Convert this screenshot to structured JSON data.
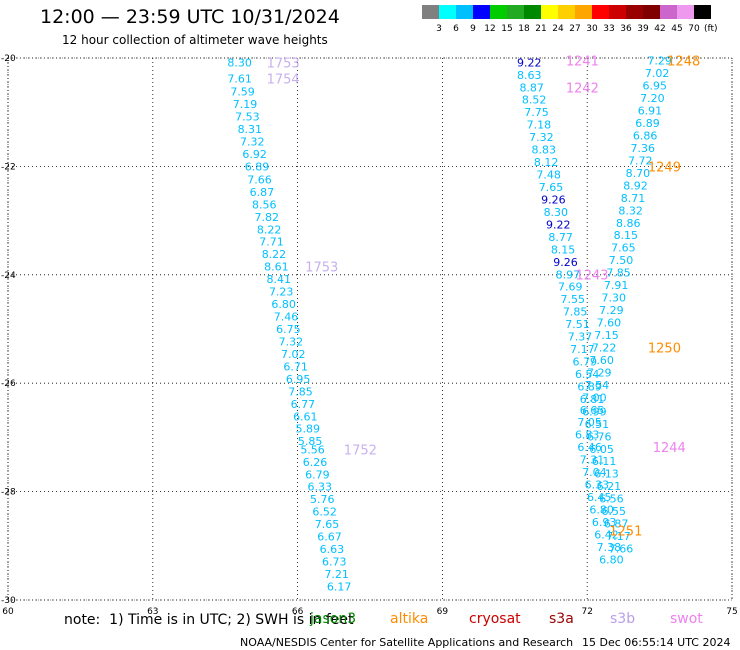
{
  "header": {
    "title": "12:00 — 23:59 UTC 10/31/2024",
    "subtitle": "12 hour collection of altimeter wave heights"
  },
  "colorbar": {
    "labels": [
      "3",
      "6",
      "9",
      "12",
      "15",
      "18",
      "21",
      "24",
      "27",
      "30",
      "33",
      "36",
      "39",
      "42",
      "45",
      "70"
    ],
    "unit": "(ft)",
    "colors": [
      "#808080",
      "#00ffff",
      "#00bfff",
      "#0000ff",
      "#00cc00",
      "#22aa22",
      "#008800",
      "#ffff00",
      "#ffd000",
      "#ffa500",
      "#ff0000",
      "#cc0000",
      "#990000",
      "#800000",
      "#cc66cc",
      "#ee99ee",
      "#000000"
    ]
  },
  "footer": {
    "note": "note:  1) Time is in UTC; 2) SWH is in feet",
    "credit": "NOAA/NESDIS Center for Satellite Applications and Research",
    "timestamp": "15 Dec 06:55:14 UTC 2024",
    "satellites": [
      {
        "name": "jason3",
        "color": "#008800"
      },
      {
        "name": "altika",
        "color": "#ff8c00"
      },
      {
        "name": "cryosat",
        "color": "#cc0000"
      },
      {
        "name": "s3a",
        "color": "#990000"
      },
      {
        "name": "s3b",
        "color": "#b8a0e8"
      },
      {
        "name": "swot",
        "color": "#ee82ee"
      }
    ]
  },
  "chart_data": {
    "type": "scatter",
    "xlim": [
      60,
      75
    ],
    "ylim": [
      -30,
      -20
    ],
    "xticks": [
      60,
      63,
      66,
      69,
      72,
      75
    ],
    "yticks": [
      -20,
      -22,
      -24,
      -26,
      -28,
      -30
    ],
    "grid": true,
    "point_color_default": "#00bfff",
    "points": [
      {
        "x": 64.8,
        "y": -20.08,
        "t": "8.30"
      },
      {
        "x": 64.8,
        "y": -20.38,
        "t": "7.61"
      },
      {
        "x": 64.86,
        "y": -20.62,
        "t": "7.59"
      },
      {
        "x": 64.91,
        "y": -20.85,
        "t": "7.19"
      },
      {
        "x": 64.96,
        "y": -21.08,
        "t": "7.53"
      },
      {
        "x": 65.01,
        "y": -21.31,
        "t": "8.31"
      },
      {
        "x": 65.06,
        "y": -21.54,
        "t": "7.32"
      },
      {
        "x": 65.11,
        "y": -21.77,
        "t": "6.92"
      },
      {
        "x": 65.16,
        "y": -22.0,
        "t": "6.89"
      },
      {
        "x": 65.21,
        "y": -22.24,
        "t": "7.66"
      },
      {
        "x": 65.26,
        "y": -22.47,
        "t": "6.87"
      },
      {
        "x": 65.31,
        "y": -22.7,
        "t": "8.56"
      },
      {
        "x": 65.36,
        "y": -22.93,
        "t": "7.82"
      },
      {
        "x": 65.41,
        "y": -23.16,
        "t": "8.22"
      },
      {
        "x": 65.46,
        "y": -23.39,
        "t": "7.71"
      },
      {
        "x": 65.51,
        "y": -23.62,
        "t": "8.22"
      },
      {
        "x": 65.56,
        "y": -23.85,
        "t": "8.61"
      },
      {
        "x": 65.61,
        "y": -24.08,
        "t": "8.41"
      },
      {
        "x": 65.66,
        "y": -24.31,
        "t": "7.23"
      },
      {
        "x": 65.71,
        "y": -24.54,
        "t": "6.80"
      },
      {
        "x": 65.76,
        "y": -24.77,
        "t": "7.46"
      },
      {
        "x": 65.81,
        "y": -25.0,
        "t": "6.75"
      },
      {
        "x": 65.86,
        "y": -25.23,
        "t": "7.32"
      },
      {
        "x": 65.91,
        "y": -25.46,
        "t": "7.02"
      },
      {
        "x": 65.96,
        "y": -25.69,
        "t": "6.71"
      },
      {
        "x": 66.01,
        "y": -25.92,
        "t": "6.95"
      },
      {
        "x": 66.06,
        "y": -26.15,
        "t": "7.85"
      },
      {
        "x": 66.11,
        "y": -26.38,
        "t": "6.77"
      },
      {
        "x": 66.16,
        "y": -26.61,
        "t": "6.61"
      },
      {
        "x": 66.21,
        "y": -26.84,
        "t": "5.89"
      },
      {
        "x": 66.26,
        "y": -27.07,
        "t": "5.85"
      },
      {
        "x": 66.31,
        "y": -27.22,
        "t": "5.56"
      },
      {
        "x": 66.36,
        "y": -27.45,
        "t": "6.26"
      },
      {
        "x": 66.41,
        "y": -27.68,
        "t": "6.79"
      },
      {
        "x": 66.46,
        "y": -27.91,
        "t": "6.33"
      },
      {
        "x": 66.51,
        "y": -28.14,
        "t": "5.76"
      },
      {
        "x": 66.56,
        "y": -28.37,
        "t": "6.52"
      },
      {
        "x": 66.61,
        "y": -28.6,
        "t": "7.65"
      },
      {
        "x": 66.66,
        "y": -28.83,
        "t": "6.67"
      },
      {
        "x": 66.71,
        "y": -29.06,
        "t": "6.63"
      },
      {
        "x": 66.76,
        "y": -29.29,
        "t": "6.73"
      },
      {
        "x": 66.81,
        "y": -29.52,
        "t": "7.21"
      },
      {
        "x": 66.86,
        "y": -29.75,
        "t": "6.17"
      },
      {
        "x": 70.8,
        "y": -20.08,
        "t": "9.22",
        "c": "#0000cc"
      },
      {
        "x": 70.8,
        "y": -20.31,
        "t": "8.63"
      },
      {
        "x": 70.85,
        "y": -20.54,
        "t": "8.87"
      },
      {
        "x": 70.9,
        "y": -20.77,
        "t": "8.52"
      },
      {
        "x": 70.95,
        "y": -21.0,
        "t": "7.75"
      },
      {
        "x": 71.0,
        "y": -21.23,
        "t": "7.18"
      },
      {
        "x": 71.05,
        "y": -21.46,
        "t": "7.32"
      },
      {
        "x": 71.1,
        "y": -21.69,
        "t": "8.83"
      },
      {
        "x": 71.15,
        "y": -21.92,
        "t": "8.12"
      },
      {
        "x": 71.2,
        "y": -22.15,
        "t": "7.48"
      },
      {
        "x": 71.25,
        "y": -22.38,
        "t": "7.65"
      },
      {
        "x": 71.3,
        "y": -22.61,
        "t": "9.26",
        "c": "#0000cc"
      },
      {
        "x": 71.35,
        "y": -22.84,
        "t": "8.30"
      },
      {
        "x": 71.4,
        "y": -23.07,
        "t": "9.22",
        "c": "#0000cc"
      },
      {
        "x": 71.45,
        "y": -23.3,
        "t": "8.77"
      },
      {
        "x": 71.5,
        "y": -23.53,
        "t": "8.15"
      },
      {
        "x": 71.55,
        "y": -23.76,
        "t": "9.26",
        "c": "#0000cc"
      },
      {
        "x": 71.6,
        "y": -23.99,
        "t": "8.97"
      },
      {
        "x": 71.65,
        "y": -24.22,
        "t": "7.69"
      },
      {
        "x": 71.7,
        "y": -24.45,
        "t": "7.55"
      },
      {
        "x": 71.75,
        "y": -24.68,
        "t": "7.85"
      },
      {
        "x": 71.8,
        "y": -24.91,
        "t": "7.51"
      },
      {
        "x": 71.85,
        "y": -25.14,
        "t": "7.37"
      },
      {
        "x": 71.9,
        "y": -25.37,
        "t": "7.17"
      },
      {
        "x": 71.95,
        "y": -25.6,
        "t": "6.79"
      },
      {
        "x": 72.0,
        "y": -25.83,
        "t": "6.54"
      },
      {
        "x": 72.05,
        "y": -26.06,
        "t": "6.89"
      },
      {
        "x": 72.1,
        "y": -26.29,
        "t": "6.81"
      },
      {
        "x": 72.15,
        "y": -26.52,
        "t": "6.99"
      },
      {
        "x": 72.2,
        "y": -26.75,
        "t": "6.51"
      },
      {
        "x": 72.25,
        "y": -26.98,
        "t": "6.76"
      },
      {
        "x": 72.3,
        "y": -27.21,
        "t": "6.05"
      },
      {
        "x": 72.35,
        "y": -27.44,
        "t": "6.11"
      },
      {
        "x": 72.4,
        "y": -27.67,
        "t": "6.13"
      },
      {
        "x": 72.45,
        "y": -27.9,
        "t": "6.21"
      },
      {
        "x": 72.5,
        "y": -28.13,
        "t": "6.56"
      },
      {
        "x": 72.55,
        "y": -28.36,
        "t": "6.55"
      },
      {
        "x": 72.6,
        "y": -28.59,
        "t": "6.87"
      },
      {
        "x": 72.65,
        "y": -28.82,
        "t": "7.17"
      },
      {
        "x": 72.7,
        "y": -29.05,
        "t": "7.66"
      },
      {
        "x": 73.5,
        "y": -20.05,
        "t": "7.29"
      },
      {
        "x": 73.45,
        "y": -20.28,
        "t": "7.02"
      },
      {
        "x": 73.4,
        "y": -20.51,
        "t": "6.95"
      },
      {
        "x": 73.35,
        "y": -20.74,
        "t": "7.20"
      },
      {
        "x": 73.3,
        "y": -20.97,
        "t": "6.91"
      },
      {
        "x": 73.25,
        "y": -21.2,
        "t": "6.89"
      },
      {
        "x": 73.2,
        "y": -21.43,
        "t": "6.86"
      },
      {
        "x": 73.15,
        "y": -21.66,
        "t": "7.36"
      },
      {
        "x": 73.1,
        "y": -21.89,
        "t": "7.72"
      },
      {
        "x": 73.05,
        "y": -22.12,
        "t": "8.70"
      },
      {
        "x": 73.0,
        "y": -22.35,
        "t": "8.92"
      },
      {
        "x": 72.95,
        "y": -22.58,
        "t": "8.71"
      },
      {
        "x": 72.9,
        "y": -22.81,
        "t": "8.32"
      },
      {
        "x": 72.85,
        "y": -23.04,
        "t": "8.86"
      },
      {
        "x": 72.8,
        "y": -23.27,
        "t": "8.15"
      },
      {
        "x": 72.75,
        "y": -23.5,
        "t": "7.65"
      },
      {
        "x": 72.7,
        "y": -23.73,
        "t": "7.50"
      },
      {
        "x": 72.65,
        "y": -23.96,
        "t": "7.85"
      },
      {
        "x": 72.6,
        "y": -24.19,
        "t": "7.91"
      },
      {
        "x": 72.55,
        "y": -24.42,
        "t": "7.30"
      },
      {
        "x": 72.5,
        "y": -24.65,
        "t": "7.29"
      },
      {
        "x": 72.45,
        "y": -24.88,
        "t": "7.60"
      },
      {
        "x": 72.4,
        "y": -25.11,
        "t": "7.15"
      },
      {
        "x": 72.35,
        "y": -25.34,
        "t": "7.22"
      },
      {
        "x": 72.3,
        "y": -25.57,
        "t": "7.60"
      },
      {
        "x": 72.25,
        "y": -25.8,
        "t": "7.29"
      },
      {
        "x": 72.2,
        "y": -26.03,
        "t": "7.54"
      },
      {
        "x": 72.15,
        "y": -26.26,
        "t": "7.00"
      },
      {
        "x": 72.1,
        "y": -26.49,
        "t": "6.65"
      },
      {
        "x": 72.05,
        "y": -26.72,
        "t": "7.05"
      },
      {
        "x": 72.0,
        "y": -26.95,
        "t": "6.83"
      },
      {
        "x": 72.05,
        "y": -27.18,
        "t": "6.46"
      },
      {
        "x": 72.1,
        "y": -27.41,
        "t": "7.31"
      },
      {
        "x": 72.15,
        "y": -27.64,
        "t": "7.04"
      },
      {
        "x": 72.2,
        "y": -27.87,
        "t": "6.33"
      },
      {
        "x": 72.25,
        "y": -28.1,
        "t": "6.45"
      },
      {
        "x": 72.3,
        "y": -28.33,
        "t": "6.80"
      },
      {
        "x": 72.35,
        "y": -28.56,
        "t": "6.93"
      },
      {
        "x": 72.4,
        "y": -28.79,
        "t": "6.42"
      },
      {
        "x": 72.45,
        "y": -29.02,
        "t": "7.38"
      },
      {
        "x": 72.5,
        "y": -29.25,
        "t": "6.80"
      }
    ],
    "track_labels": [
      {
        "x": 65.7,
        "y": -20.08,
        "t": "1753",
        "c": "#c8b0ee"
      },
      {
        "x": 65.7,
        "y": -20.38,
        "t": "1754",
        "c": "#c8b0ee"
      },
      {
        "x": 66.5,
        "y": -23.85,
        "t": "1753",
        "c": "#c8b0ee"
      },
      {
        "x": 67.3,
        "y": -27.22,
        "t": "1752",
        "c": "#c8b0ee"
      },
      {
        "x": 71.9,
        "y": -20.05,
        "t": "1241",
        "c": "#ee82ee"
      },
      {
        "x": 71.9,
        "y": -20.54,
        "t": "1242",
        "c": "#ee82ee"
      },
      {
        "x": 72.1,
        "y": -23.99,
        "t": "1243",
        "c": "#ee82ee"
      },
      {
        "x": 73.7,
        "y": -27.18,
        "t": "1244",
        "c": "#ee82ee"
      },
      {
        "x": 74.0,
        "y": -20.05,
        "t": "1248",
        "c": "#ff8c00"
      },
      {
        "x": 73.6,
        "y": -22.0,
        "t": "1249",
        "c": "#ff8c00"
      },
      {
        "x": 73.6,
        "y": -25.34,
        "t": "1250",
        "c": "#ff8c00"
      },
      {
        "x": 72.8,
        "y": -28.72,
        "t": "1251",
        "c": "#ff8c00"
      }
    ]
  }
}
